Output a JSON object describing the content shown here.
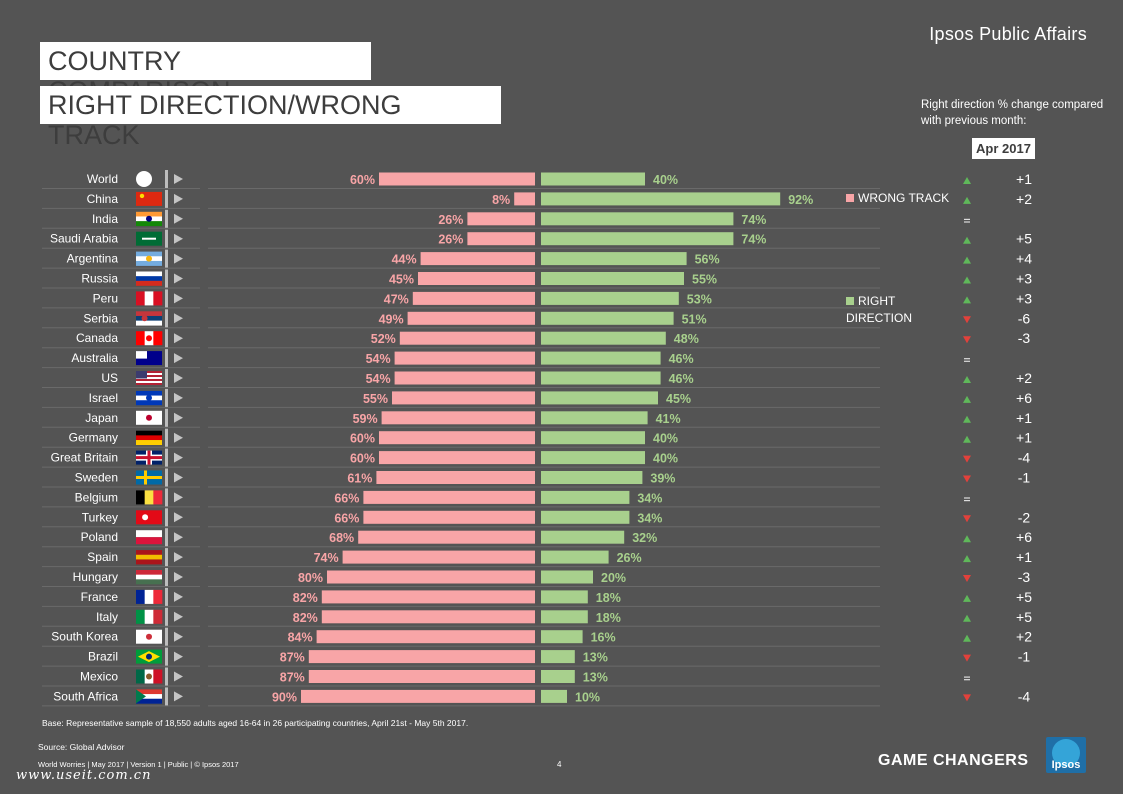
{
  "header": {
    "brand": "Ipsos Public Affairs",
    "title_line1": "COUNTRY COMPARISON",
    "title_line2": "RIGHT DIRECTION/WRONG TRACK"
  },
  "change_panel": {
    "caption": "Right direction % change compared with previous month:",
    "month": "Apr 2017"
  },
  "chart_data": {
    "type": "bar",
    "orientation": "horizontal-diverging",
    "series": [
      {
        "name": "WRONG TRACK",
        "color": "#f8a5a7",
        "label_color": "#f8a5a7",
        "values": [
          60,
          8,
          26,
          26,
          44,
          45,
          47,
          49,
          52,
          54,
          54,
          55,
          59,
          60,
          60,
          61,
          66,
          66,
          68,
          74,
          80,
          82,
          82,
          84,
          87,
          87,
          90
        ]
      },
      {
        "name": "RIGHT DIRECTION",
        "color": "#a8d08d",
        "label_color": "#a8d08d",
        "values": [
          40,
          92,
          74,
          74,
          56,
          55,
          53,
          51,
          48,
          46,
          46,
          45,
          41,
          40,
          40,
          39,
          34,
          34,
          32,
          26,
          20,
          18,
          18,
          16,
          13,
          13,
          10
        ]
      }
    ],
    "categories": [
      "World",
      "China",
      "India",
      "Saudi Arabia",
      "Argentina",
      "Russia",
      "Peru",
      "Serbia",
      "Canada",
      "Australia",
      "US",
      "Israel",
      "Japan",
      "Germany",
      "Great Britain",
      "Sweden",
      "Belgium",
      "Turkey",
      "Poland",
      "Spain",
      "Hungary",
      "France",
      "Italy",
      "South Korea",
      "Brazil",
      "Mexico",
      "South Africa"
    ],
    "value_labels": {
      "wrong": [
        "60%",
        "8%",
        "26%",
        "26%",
        "44%",
        "45%",
        "47%",
        "49%",
        "52%",
        "54%",
        "54%",
        "55%",
        "59%",
        "60%",
        "60%",
        "61%",
        "66%",
        "66%",
        "68%",
        "74%",
        "80%",
        "82%",
        "82%",
        "84%",
        "87%",
        "87%",
        "90%"
      ],
      "right": [
        "40%",
        "92%",
        "74%",
        "74%",
        "56%",
        "55%",
        "53%",
        "51%",
        "48%",
        "46%",
        "46%",
        "45%",
        "41%",
        "40%",
        "40%",
        "39%",
        "34%",
        "34%",
        "32%",
        "26%",
        "20%",
        "18%",
        "18%",
        "16%",
        "13%",
        "13%",
        "10%"
      ]
    },
    "changes": [
      "+1",
      "+2",
      "",
      "+5",
      "+4",
      "+3",
      "+3",
      "-6",
      "-3",
      "",
      "+2",
      "+6",
      "+1",
      "+1",
      "-4",
      "-1",
      "",
      "-2",
      "+6",
      "+1",
      "-3",
      "+5",
      "+5",
      "+2",
      "-1",
      "",
      "-4"
    ],
    "change_trend": [
      "up",
      "up",
      "flat",
      "up",
      "up",
      "up",
      "up",
      "down",
      "down",
      "flat",
      "up",
      "up",
      "up",
      "up",
      "down",
      "down",
      "flat",
      "down",
      "up",
      "up",
      "down",
      "up",
      "up",
      "up",
      "down",
      "flat",
      "down"
    ],
    "legend": [
      {
        "name": "WRONG TRACK",
        "color": "#f8a5a7"
      },
      {
        "name": "RIGHT DIRECTION",
        "color": "#a8d08d"
      }
    ],
    "xlim": [
      0,
      100
    ]
  },
  "colors": {
    "background": "#545454",
    "wrong": "#f8a5a7",
    "right": "#a8d08d",
    "up": "#5fb85a",
    "down": "#e2413b",
    "flat": "#dddddd"
  },
  "footer": {
    "base": "Base: Representative sample of 18,550 adults aged 16-64 in 26 participating countries, April 21st  - May 5th 2017.",
    "source": "Source: Global Advisor",
    "meta": "World Worries | May 2017 |  Version 1  |  Public | © Ipsos 2017",
    "page": "4",
    "tagline": "GAME CHANGERS",
    "logo_word": "Ipsos",
    "watermark": "www.useit.com.cn"
  }
}
